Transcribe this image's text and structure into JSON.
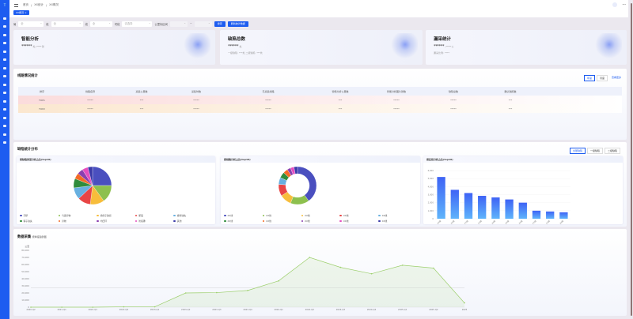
{
  "sidebar": {
    "logo": "T",
    "item_count": 16
  },
  "header": {
    "breadcrumb": [
      "首页",
      "XX统计",
      "XX概况"
    ],
    "active_tab": "XX概况 ×",
    "user": "***"
  },
  "filters": {
    "items": [
      {
        "label": "局",
        "value": "全"
      },
      {
        "label": "段",
        "value": "全"
      },
      {
        "label": "线",
        "value": "全"
      },
      {
        "label": "时段",
        "value": "请选择"
      }
    ],
    "range_label": "公里标区间",
    "range_sep": "~",
    "search": "搜索",
    "refresh": "刷新统计数据"
  },
  "cards": [
    {
      "title": "智能分析",
      "value": "******",
      "sub": "处 / ***** 张"
    },
    {
      "title": "缺陷总数",
      "value": "******",
      "unit": "处",
      "sub": "一级缺陷: ***处   二级缺陷: ***处"
    },
    {
      "title": "漏采统计",
      "value": "******",
      "unit": "/ ***** 公",
      "sub": "漏采比例: ****"
    }
  ],
  "table": {
    "title": "线路情况统计",
    "toggle": [
      "年度",
      "月度"
    ],
    "more": "查看更多",
    "headers": [
      "排序",
      "线路名称",
      "采集公里数",
      "采集时数",
      "已采集线路",
      "智能分析公里数",
      "智能分析图片张数",
      "缺陷总数",
      "确认缺陷数"
    ],
    "rows": [
      [
        "TOP1",
        "*****",
        "***",
        "*****",
        "*****",
        "***",
        "*****",
        "*****",
        "***"
      ],
      [
        "TOP2",
        "*****",
        "***",
        "*****",
        "*****",
        "***",
        "*****",
        "*****",
        "***"
      ]
    ]
  },
  "dist": {
    "title": "缺陷统计分布",
    "toggle": [
      "全部缺陷",
      "一级缺陷",
      "二级缺陷"
    ]
  },
  "chart_data": [
    {
      "type": "pie",
      "title": "按缺陷类型分析占比(top10)",
      "categories": [
        "污秽",
        "鸟巢异物",
        "绝缘子破损",
        "断股",
        "螺栓缺失",
        "销子缺失",
        "异物",
        "均压环",
        "防振锤",
        "其他"
      ],
      "values": [
        25,
        15,
        12,
        11,
        10,
        8,
        5,
        5,
        5,
        4
      ],
      "colors": [
        "#4a4fbf",
        "#8dc04e",
        "#f7bd3b",
        "#e84545",
        "#68b0e0",
        "#2f8c3c",
        "#f46a25",
        "#8a3fb0",
        "#e54ec0",
        "#3a3aa8"
      ]
    },
    {
      "type": "pie",
      "donut": true,
      "title": "按线路分析占比(top10)",
      "categories": [
        "XX线",
        "XX线",
        "XX线",
        "XX线",
        "XX线",
        "XX线",
        "XX线",
        "XX线",
        "XX线",
        "XX线"
      ],
      "values": [
        40,
        16,
        10,
        10,
        6,
        5,
        4,
        3,
        3,
        3
      ],
      "colors": [
        "#4a4fbf",
        "#8dc04e",
        "#f7bd3b",
        "#e84545",
        "#68b0e0",
        "#2f8c3c",
        "#f46a25",
        "#8a3fb0",
        "#e54ec0",
        "#3a3aa8"
      ]
    },
    {
      "type": "bar",
      "title": "按区段分析占比(top10)",
      "categories": [
        "XX段",
        "XX段",
        "XX段",
        "XX段",
        "XX段",
        "XX段",
        "XX段",
        "XX段",
        "XX段",
        "XX段"
      ],
      "values": [
        5200,
        3600,
        3200,
        2850,
        2650,
        2400,
        2000,
        1000,
        900,
        800
      ],
      "ylim": [
        0,
        6000
      ],
      "yticks": [
        "0",
        "1,000",
        "2,000",
        "3,000",
        "4,000",
        "5,000",
        "6,000"
      ]
    },
    {
      "type": "line",
      "title": "数据采集",
      "subtitle": "按季度趋势图",
      "ylabel": "公里",
      "ylim": [
        0,
        80000
      ],
      "yticks": [
        "0",
        "10,000",
        "20,000",
        "30,000",
        "40,000",
        "50,000",
        "60,000",
        "70,000",
        "80,000"
      ],
      "mean_line": 27000,
      "categories": [
        "2020-Q2",
        "2021-Q1",
        "2022-Q1",
        "2022-Q4",
        "2023-Q1",
        "2023-Q2",
        "2023-Q3",
        "2023-Q4",
        "2024-Q1",
        "2024-Q2",
        "2024-Q3",
        "2024-Q4",
        "2025-Q1",
        "2025-Q2",
        "2025"
      ],
      "values": [
        0,
        0,
        0,
        500,
        500,
        20000,
        20500,
        23500,
        37000,
        70000,
        56000,
        47000,
        59000,
        55000,
        6000
      ],
      "color": "#9ccf6c"
    }
  ]
}
